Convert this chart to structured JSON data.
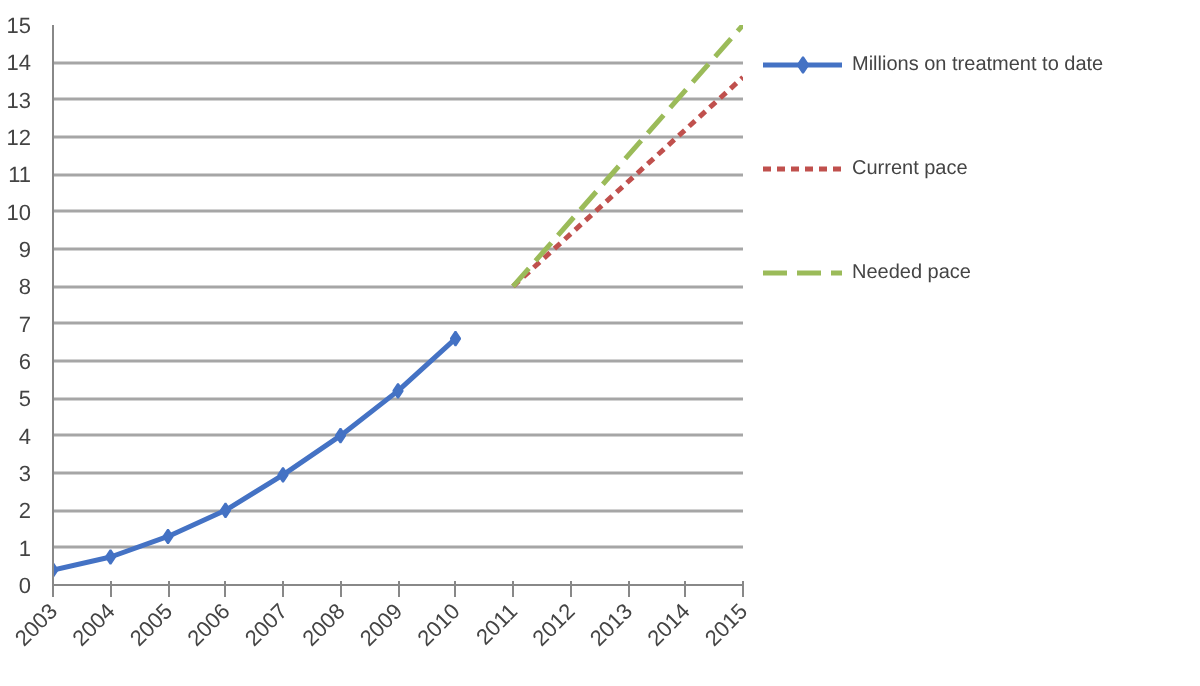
{
  "chart_data": {
    "type": "line",
    "xlim": [
      2003,
      2015
    ],
    "xticks": [
      2003,
      2004,
      2005,
      2006,
      2007,
      2008,
      2009,
      2010,
      2011,
      2012,
      2013,
      2014,
      2015
    ],
    "ylim": [
      0,
      15
    ],
    "yticks": [
      0,
      1,
      2,
      3,
      4,
      5,
      6,
      7,
      8,
      9,
      10,
      11,
      12,
      13,
      14,
      15
    ],
    "grid": "y",
    "legend": "right",
    "series": [
      {
        "name": "Millions on treatment to date",
        "color": "#4472c4",
        "marker": "diamond",
        "line_style": "solid",
        "x": [
          2003,
          2004,
          2005,
          2006,
          2007,
          2008,
          2009,
          2010
        ],
        "values": [
          0.4,
          0.75,
          1.3,
          2.0,
          2.95,
          4.0,
          5.2,
          6.6
        ]
      },
      {
        "name": "Current pace",
        "color": "#c0504d",
        "marker": "none",
        "line_style": "dotted",
        "x": [
          2011,
          2015
        ],
        "values": [
          8,
          13.6
        ]
      },
      {
        "name": "Needed pace",
        "color": "#9bbb59",
        "marker": "none",
        "line_style": "dashed",
        "x": [
          2011,
          2015
        ],
        "values": [
          8,
          15
        ]
      }
    ]
  }
}
